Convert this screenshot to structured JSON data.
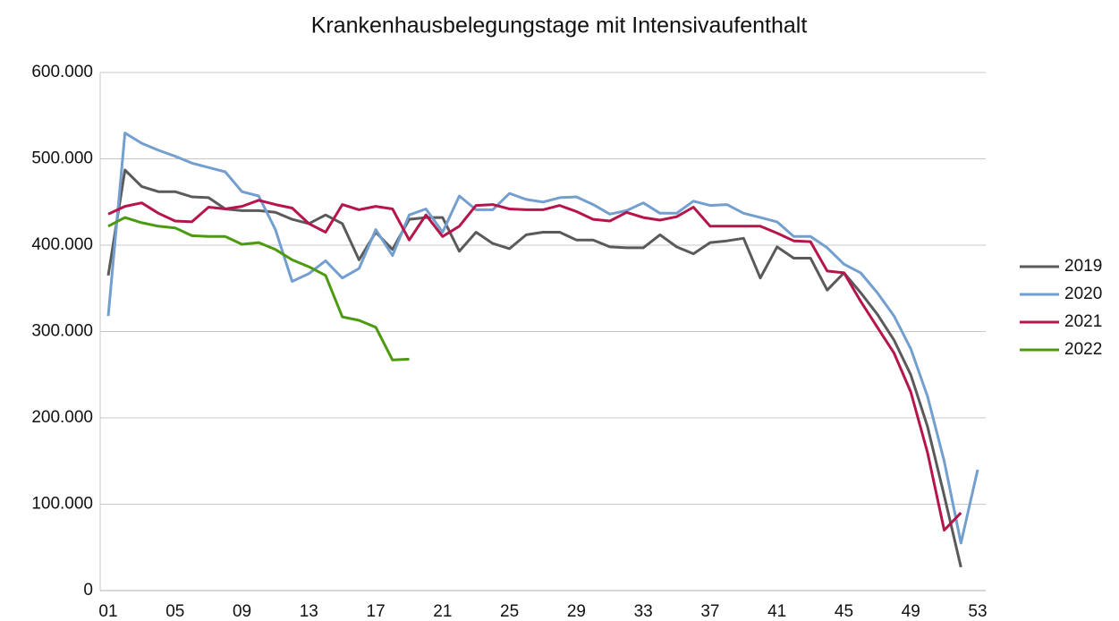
{
  "chart_data": {
    "type": "line",
    "title": "Krankenhausbelegungstage mit Intensivaufenthalt",
    "categories": [
      "01",
      null,
      null,
      null,
      "05",
      null,
      null,
      null,
      "09",
      null,
      null,
      null,
      "13",
      null,
      null,
      null,
      "17",
      null,
      null,
      null,
      "21",
      null,
      null,
      null,
      "25",
      null,
      null,
      null,
      "29",
      null,
      null,
      null,
      "33",
      null,
      null,
      null,
      "37",
      null,
      null,
      null,
      "41",
      null,
      null,
      null,
      "45",
      null,
      null,
      null,
      "49",
      null,
      null,
      null,
      "53"
    ],
    "series": [
      {
        "name": "2019",
        "color": "#5a5a5a",
        "values": [
          365000,
          487000,
          468000,
          462000,
          462000,
          456000,
          455000,
          442000,
          440000,
          440000,
          438000,
          430000,
          425000,
          435000,
          425000,
          383000,
          415000,
          395000,
          430000,
          432000,
          432000,
          393000,
          415000,
          402000,
          396000,
          412000,
          415000,
          415000,
          406000,
          406000,
          398000,
          397000,
          397000,
          412000,
          398000,
          390000,
          403000,
          405000,
          408000,
          362000,
          398000,
          385000,
          385000,
          348000,
          368000,
          345000,
          320000,
          290000,
          250000,
          190000,
          110000,
          27000,
          null
        ]
      },
      {
        "name": "2020",
        "color": "#729fcf",
        "values": [
          318000,
          530000,
          518000,
          510000,
          503000,
          495000,
          490000,
          485000,
          462000,
          457000,
          418000,
          358000,
          367000,
          382000,
          362000,
          373000,
          418000,
          388000,
          435000,
          442000,
          415000,
          457000,
          441000,
          441000,
          460000,
          453000,
          450000,
          455000,
          456000,
          447000,
          436000,
          440000,
          449000,
          437000,
          437000,
          451000,
          446000,
          447000,
          437000,
          432000,
          427000,
          410000,
          410000,
          397000,
          378000,
          368000,
          345000,
          318000,
          280000,
          225000,
          150000,
          55000,
          140000
        ]
      },
      {
        "name": "2021",
        "color": "#b5154b",
        "values": [
          436000,
          445000,
          449000,
          437000,
          428000,
          427000,
          444000,
          442000,
          445000,
          452000,
          447000,
          443000,
          425000,
          415000,
          447000,
          441000,
          445000,
          442000,
          406000,
          435000,
          410000,
          422000,
          446000,
          447000,
          442000,
          441000,
          441000,
          446000,
          439000,
          430000,
          428000,
          438000,
          432000,
          429000,
          433000,
          444000,
          422000,
          422000,
          422000,
          422000,
          414000,
          405000,
          404000,
          370000,
          368000,
          335000,
          305000,
          275000,
          230000,
          160000,
          70000,
          90000,
          null
        ]
      },
      {
        "name": "2022",
        "color": "#4c9a0e",
        "values": [
          422000,
          432000,
          426000,
          422000,
          420000,
          411000,
          410000,
          410000,
          401000,
          403000,
          395000,
          383000,
          375000,
          365000,
          317000,
          313000,
          305000,
          267000,
          268000,
          null,
          null,
          null,
          null,
          null,
          null,
          null,
          null,
          null,
          null,
          null,
          null,
          null,
          null,
          null,
          null,
          null,
          null,
          null,
          null,
          null,
          null,
          null,
          null,
          null,
          null,
          null,
          null,
          null,
          null,
          null,
          null,
          null,
          null
        ]
      }
    ],
    "ylim": [
      0,
      600000
    ],
    "yticks": [
      0,
      {
        "value": 100000,
        "label": "100.000"
      },
      {
        "value": 200000,
        "label": "200.000"
      },
      {
        "value": 300000,
        "label": "300.000"
      },
      {
        "value": 400000,
        "label": "400.000"
      },
      {
        "value": 500000,
        "label": "500.000"
      },
      {
        "value": 600000,
        "label": "600.000"
      }
    ],
    "grid": true,
    "legend": "right"
  }
}
